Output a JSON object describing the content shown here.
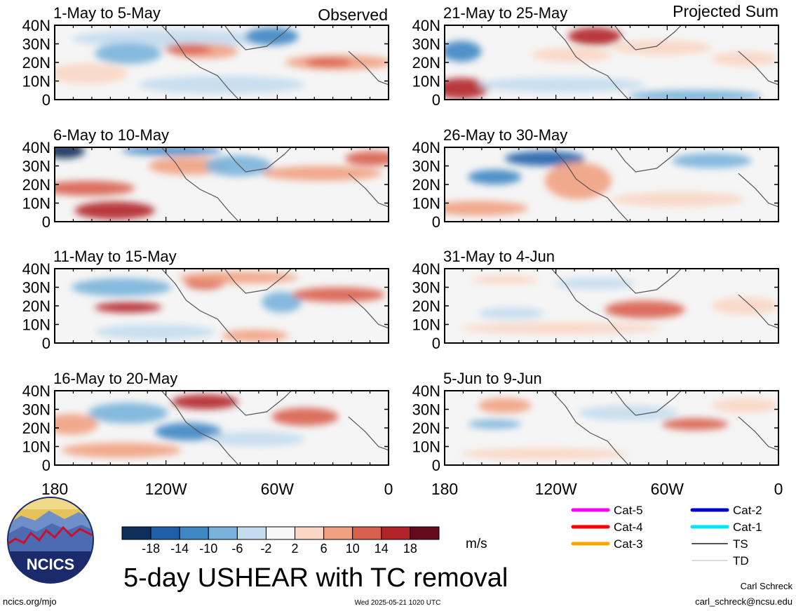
{
  "observed_label": "Observed",
  "projected_label": "Projected Sum",
  "panels": [
    {
      "title": "1-May to 5-May",
      "column": "observed"
    },
    {
      "title": "6-May to 10-May",
      "column": "observed"
    },
    {
      "title": "11-May to 15-May",
      "column": "observed"
    },
    {
      "title": "16-May to 20-May",
      "column": "observed"
    },
    {
      "title": "21-May to 25-May",
      "column": "projected"
    },
    {
      "title": "26-May to 30-May",
      "column": "projected"
    },
    {
      "title": "31-May to 4-Jun",
      "column": "projected"
    },
    {
      "title": "5-Jun to 9-Jun",
      "column": "projected"
    }
  ],
  "lat_labels": [
    "40N",
    "30N",
    "20N",
    "10N",
    "0"
  ],
  "lon_labels": [
    "180",
    "120W",
    "60W",
    "0"
  ],
  "colorbar": {
    "ticks": [
      "-18",
      "-14",
      "-10",
      "-6",
      "-2",
      "2",
      "6",
      "10",
      "14",
      "18"
    ],
    "colors": [
      "#0d2f5a",
      "#1f5fa8",
      "#3f86c4",
      "#79b2da",
      "#c3dcee",
      "#f7f7f7",
      "#fad7c4",
      "#f1a182",
      "#d9604f",
      "#b3232a",
      "#640a1c"
    ],
    "unit": "m/s"
  },
  "legend": [
    {
      "label": "Cat-5",
      "color": "#ff00ff"
    },
    {
      "label": "Cat-4",
      "color": "#ff0000"
    },
    {
      "label": "Cat-3",
      "color": "#ffa500"
    },
    {
      "label": "Cat-2",
      "color": "#0000c8"
    },
    {
      "label": "Cat-1",
      "color": "#00e5ff"
    },
    {
      "label": "TS",
      "color": "#555555"
    },
    {
      "label": "TD",
      "color": "#b4b4b4"
    }
  ],
  "main_title": "5-day USHEAR with TC removal",
  "logo_text": "NCICS",
  "footer_left": "ncics.org/mjo",
  "footer_center": "Wed 2025-05-21 1020 UTC",
  "author_name": "Carl Schreck",
  "author_email": "carl_schreck@ncsu.edu"
}
